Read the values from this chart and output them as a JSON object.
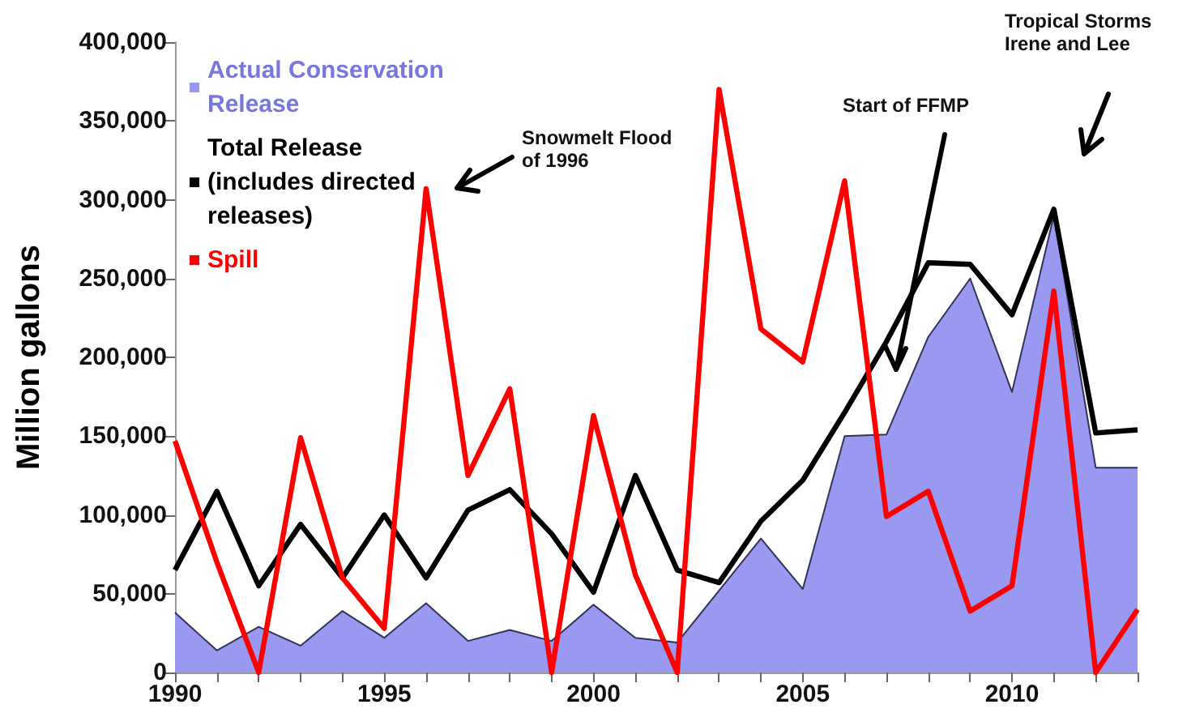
{
  "chart_data": {
    "type": "line",
    "ylabel": "Million gallons",
    "x": [
      1990,
      1991,
      1992,
      1993,
      1994,
      1995,
      1996,
      1997,
      1998,
      1999,
      2000,
      2001,
      2002,
      2003,
      2004,
      2005,
      2006,
      2007,
      2008,
      2009,
      2010,
      2011,
      2012,
      2013
    ],
    "series": [
      {
        "name": "Actual Conservation Release",
        "type": "area",
        "color": "#9999f2",
        "values": [
          38000,
          14000,
          29000,
          17000,
          39000,
          22000,
          44000,
          20000,
          27000,
          20000,
          43000,
          22000,
          19000,
          52000,
          85000,
          53000,
          150000,
          151000,
          213000,
          250000,
          178000,
          290000,
          130000,
          130000
        ]
      },
      {
        "name": "Total Release (includes directed releases)",
        "type": "line",
        "color": "#000000",
        "values": [
          65000,
          115000,
          55000,
          94000,
          60000,
          100000,
          60000,
          103000,
          116000,
          88000,
          51000,
          125000,
          65000,
          57000,
          96000,
          122000,
          165000,
          210000,
          260000,
          259000,
          227000,
          294000,
          152000,
          154000
        ]
      },
      {
        "name": "Spill",
        "type": "line",
        "color": "#ff0000",
        "values": [
          147000,
          70000,
          0,
          149000,
          60000,
          28000,
          307000,
          125000,
          180000,
          0,
          163000,
          62000,
          0,
          370000,
          218000,
          197000,
          312000,
          99000,
          115000,
          39000,
          55000,
          242000,
          0,
          40000
        ]
      }
    ],
    "xlim": [
      1990,
      2013
    ],
    "xticks": [
      1990,
      {
        "value": 1991,
        "label": null
      },
      {
        "value": 1992,
        "label": null
      },
      {
        "value": 1993,
        "label": null
      },
      {
        "value": 1994,
        "label": null
      },
      1995,
      {
        "value": 1996,
        "label": null
      },
      {
        "value": 1997,
        "label": null
      },
      {
        "value": 1998,
        "label": null
      },
      {
        "value": 1999,
        "label": null
      },
      2000,
      {
        "value": 2001,
        "label": null
      },
      {
        "value": 2002,
        "label": null
      },
      {
        "value": 2003,
        "label": null
      },
      {
        "value": 2004,
        "label": null
      },
      2005,
      {
        "value": 2006,
        "label": null
      },
      {
        "value": 2007,
        "label": null
      },
      {
        "value": 2008,
        "label": null
      },
      {
        "value": 2009,
        "label": null
      },
      2010,
      {
        "value": 2011,
        "label": null
      },
      {
        "value": 2012,
        "label": null
      },
      {
        "value": 2013,
        "label": null
      }
    ],
    "ylim": [
      0,
      400000
    ],
    "yticks": [
      0,
      {
        "value": 50000,
        "label": "50,000"
      },
      {
        "value": 100000,
        "label": "100,000"
      },
      {
        "value": 150000,
        "label": "150,000"
      },
      {
        "value": 200000,
        "label": "200,000"
      },
      {
        "value": 250000,
        "label": "250,000"
      },
      {
        "value": 300000,
        "label": "300,000"
      },
      {
        "value": 350000,
        "label": "350,000"
      },
      {
        "value": 400000,
        "label": "400,000"
      }
    ],
    "annotations": [
      "Snowmelt Flood\nof 1996",
      "Start of FFMP",
      "Tropical Storms\nIrene and Lee"
    ],
    "grid": false,
    "legend": "top left",
    "marker": "none",
    "line_style": "solid"
  }
}
